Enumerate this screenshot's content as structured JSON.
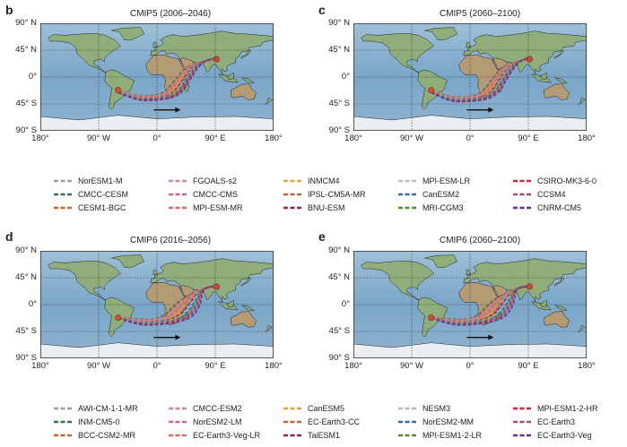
{
  "panels": [
    {
      "letter": "b",
      "title": "CMIP5 (2006–2046)"
    },
    {
      "letter": "c",
      "title": "CMIP5 (2060–2100)"
    },
    {
      "letter": "d",
      "title": "CMIP6 (2016–2056)"
    },
    {
      "letter": "e",
      "title": "CMIP6 (2060–2100)"
    }
  ],
  "axes": {
    "lat_labels": [
      "90° N",
      "45° N",
      "0°",
      "45° S",
      "90° S"
    ],
    "lon_labels": [
      "180°",
      "90° W",
      "0°",
      "90° E",
      "180°"
    ]
  },
  "colors": {
    "ocean": "#7aa6c8",
    "land_green": "#8fae7c",
    "land_brown": "#b59b74",
    "ice": "#e8eef2",
    "start": "#d24f3a",
    "end": "#c54a3a"
  },
  "legend_cmip5": [
    {
      "name": "NorESM1-M",
      "color": "#9e9e9e"
    },
    {
      "name": "CMCC-CESM",
      "color": "#3e6b4e"
    },
    {
      "name": "CESM1-BGC",
      "color": "#c8622d"
    },
    {
      "name": "FGOALS-s2",
      "color": "#c98a96"
    },
    {
      "name": "CMCC-CMS",
      "color": "#d4609a"
    },
    {
      "name": "MPI-ESM-MR",
      "color": "#e06a6a"
    },
    {
      "name": "INMCM4",
      "color": "#d9a441"
    },
    {
      "name": "IPSL-CM5A-MR",
      "color": "#c0643c"
    },
    {
      "name": "BNU-ESM",
      "color": "#8a2a4a"
    },
    {
      "name": "MPI-ESM-LR",
      "color": "#bbbbbb"
    },
    {
      "name": "CanESM2",
      "color": "#2e6fa8"
    },
    {
      "name": "MRI-CGM3",
      "color": "#5b8a2e"
    },
    {
      "name": "CSIRO-MK3-6-0",
      "color": "#d0243e"
    },
    {
      "name": "CCSM4",
      "color": "#a04a7a"
    },
    {
      "name": "CNRM-CM5",
      "color": "#6a2d8a"
    }
  ],
  "legend_cmip6": [
    {
      "name": "AWI-CM-1-1-MR",
      "color": "#9e9e9e"
    },
    {
      "name": "INM-CM5-0",
      "color": "#3e6b4e"
    },
    {
      "name": "BCC-CSM2-MR",
      "color": "#c8622d"
    },
    {
      "name": "CMCC-ESM2",
      "color": "#c98a96"
    },
    {
      "name": "NorESM2-LM",
      "color": "#d4609a"
    },
    {
      "name": "EC-Earth3-Veg-LR",
      "color": "#e06a6a"
    },
    {
      "name": "CanESM5",
      "color": "#d9a441"
    },
    {
      "name": "EC-Earth3-CC",
      "color": "#c0643c"
    },
    {
      "name": "TaiESM1",
      "color": "#8a2a4a"
    },
    {
      "name": "NESM3",
      "color": "#bbbbbb"
    },
    {
      "name": "NorESM2-MM",
      "color": "#2e6fa8"
    },
    {
      "name": "MPI-ESM1-2-LR",
      "color": "#5b8a2e"
    },
    {
      "name": "MPI-ESM1-2-HR",
      "color": "#d0243e"
    },
    {
      "name": "EC-Earth3",
      "color": "#a04a7a"
    },
    {
      "name": "EC-Earth3-Veg",
      "color": "#6a2d8a"
    }
  ]
}
